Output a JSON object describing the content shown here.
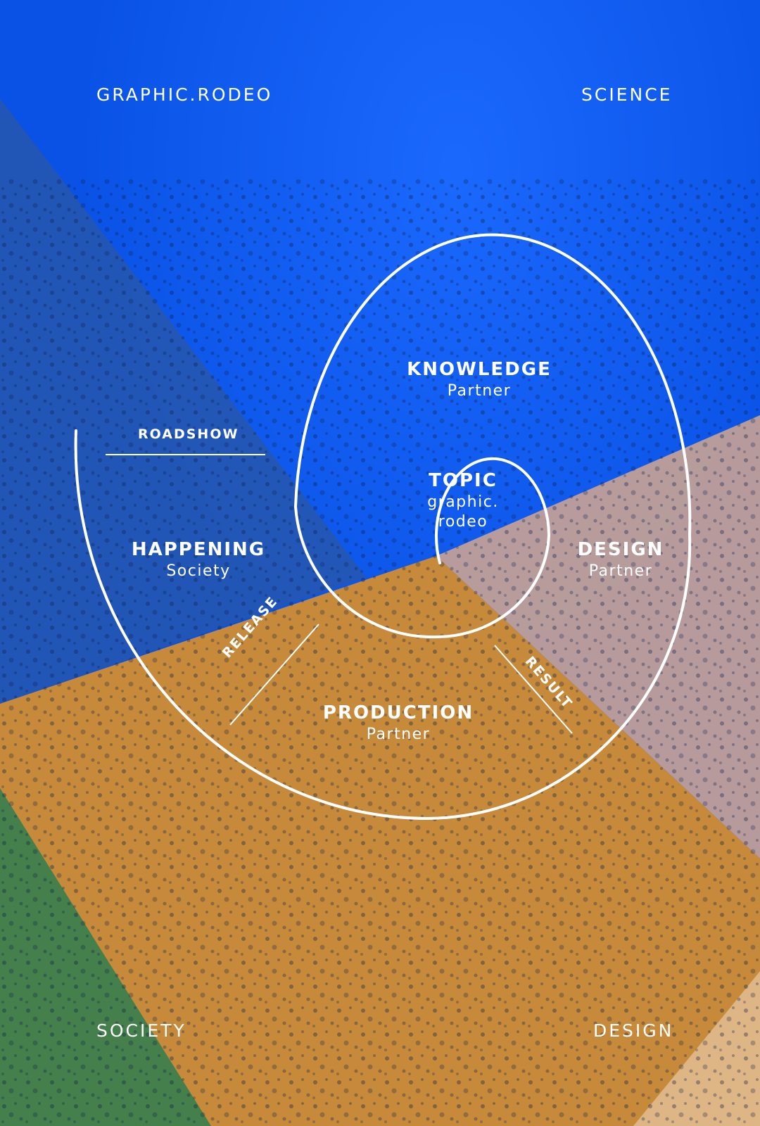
{
  "corners": {
    "top_left": "GRAPHIC.RODEO",
    "top_right": "SCIENCE",
    "bottom_left": "SOCIETY",
    "bottom_right": "DESIGN"
  },
  "nodes": {
    "topic": {
      "title": "TOPIC",
      "line1": "graphic.",
      "line2": "rodeo"
    },
    "knowledge": {
      "title": "KNOWLEDGE",
      "subtitle": "Partner"
    },
    "design": {
      "title": "DESIGN",
      "subtitle": "Partner"
    },
    "production": {
      "title": "PRODUCTION",
      "subtitle": "Partner"
    },
    "happening": {
      "title": "HAPPENING",
      "subtitle": "Society"
    }
  },
  "connectors": {
    "roadshow": "ROADSHOW",
    "release": "RELEASE",
    "result": "RESULT"
  },
  "colors": {
    "blue": "#0a52e6",
    "orange": "#c68a3a",
    "peach": "#d9a98a",
    "green": "#2e7d4f",
    "line": "#ffffff"
  }
}
